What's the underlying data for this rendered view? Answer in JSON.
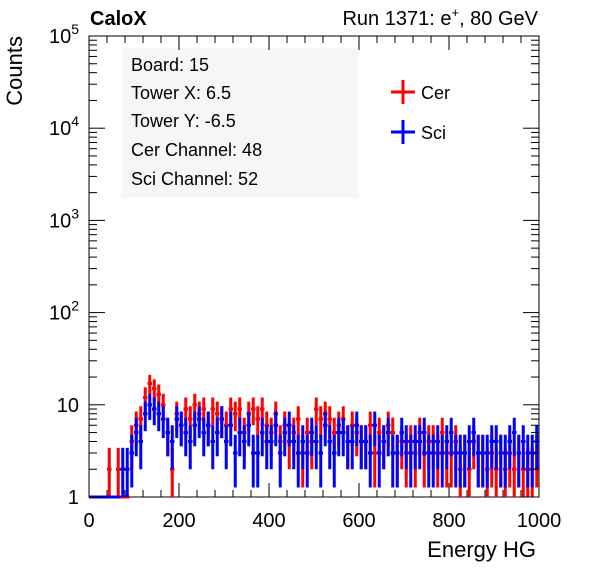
{
  "header": {
    "experiment": "CaloX",
    "run_prefix": "Run 1371: e",
    "run_charge": "+",
    "run_suffix": ", 80 GeV"
  },
  "info_box": {
    "lines": [
      "Board: 15",
      "Tower X: 6.5",
      "Tower Y: -6.5",
      "Cer Channel: 48",
      "Sci Channel: 52"
    ]
  },
  "chart_data": {
    "type": "histogram",
    "title": "",
    "xlabel": "Energy HG",
    "ylabel": "Counts",
    "xlim": [
      0,
      1000
    ],
    "ylim": [
      1,
      100000
    ],
    "y_scale": "log",
    "grid": false,
    "legend_position": "top-right",
    "x_ticks": [
      0,
      200,
      400,
      600,
      800,
      1000
    ],
    "x_tick_labels": [
      "0",
      "200",
      "400",
      "600",
      "800",
      "1000"
    ],
    "y_tick_labels": [
      {
        "base": "1",
        "exp": "",
        "value": 1
      },
      {
        "base": "10",
        "exp": "",
        "value": 10
      },
      {
        "base": "10",
        "exp": "2",
        "value": 100
      },
      {
        "base": "10",
        "exp": "3",
        "value": 1000
      },
      {
        "base": "10",
        "exp": "4",
        "value": 10000
      },
      {
        "base": "10",
        "exp": "5",
        "value": 100000
      }
    ],
    "bins": {
      "start": 0,
      "end": 1000,
      "count": 100
    },
    "series": [
      {
        "name": "Cer",
        "color": "#ff0000",
        "values": [
          0,
          0,
          0,
          0,
          2,
          0,
          2,
          0,
          0,
          4,
          6,
          7,
          12,
          17,
          15,
          13,
          10,
          5,
          2,
          8,
          6,
          9,
          7,
          10,
          8,
          9,
          6,
          9,
          8,
          7,
          6,
          9,
          8,
          9,
          5,
          8,
          9,
          7,
          9,
          6,
          5,
          8,
          4,
          6,
          4,
          5,
          7,
          3,
          5,
          4,
          9,
          7,
          8,
          7,
          5,
          6,
          7,
          4,
          6,
          5,
          4,
          4,
          6,
          3,
          5,
          4,
          6,
          5,
          3,
          4,
          3,
          4,
          3,
          5,
          3,
          4,
          4,
          3,
          5,
          3,
          3,
          4,
          2,
          3,
          2,
          4,
          3,
          3,
          2,
          3,
          2,
          3,
          2,
          3,
          2,
          3,
          2,
          2,
          2,
          3
        ]
      },
      {
        "name": "Sci",
        "color": "#0000ff",
        "values": [
          0,
          0,
          0,
          0,
          0,
          0,
          0,
          2,
          2,
          3,
          5,
          4,
          8,
          10,
          9,
          8,
          7,
          5,
          4,
          7,
          6,
          5,
          4,
          6,
          7,
          5,
          6,
          4,
          5,
          7,
          4,
          6,
          3,
          5,
          4,
          6,
          3,
          3,
          5,
          4,
          4,
          6,
          3,
          5,
          6,
          4,
          3,
          4,
          3,
          5,
          4,
          3,
          6,
          4,
          3,
          5,
          5,
          4,
          4,
          6,
          4,
          4,
          3,
          6,
          3,
          4,
          5,
          3,
          3,
          5,
          4,
          3,
          4,
          4,
          5,
          3,
          3,
          4,
          3,
          4,
          5,
          3,
          3,
          3,
          4,
          5,
          3,
          3,
          3,
          4,
          4,
          3,
          3,
          4,
          5,
          3,
          4,
          3,
          3,
          4
        ]
      }
    ]
  }
}
